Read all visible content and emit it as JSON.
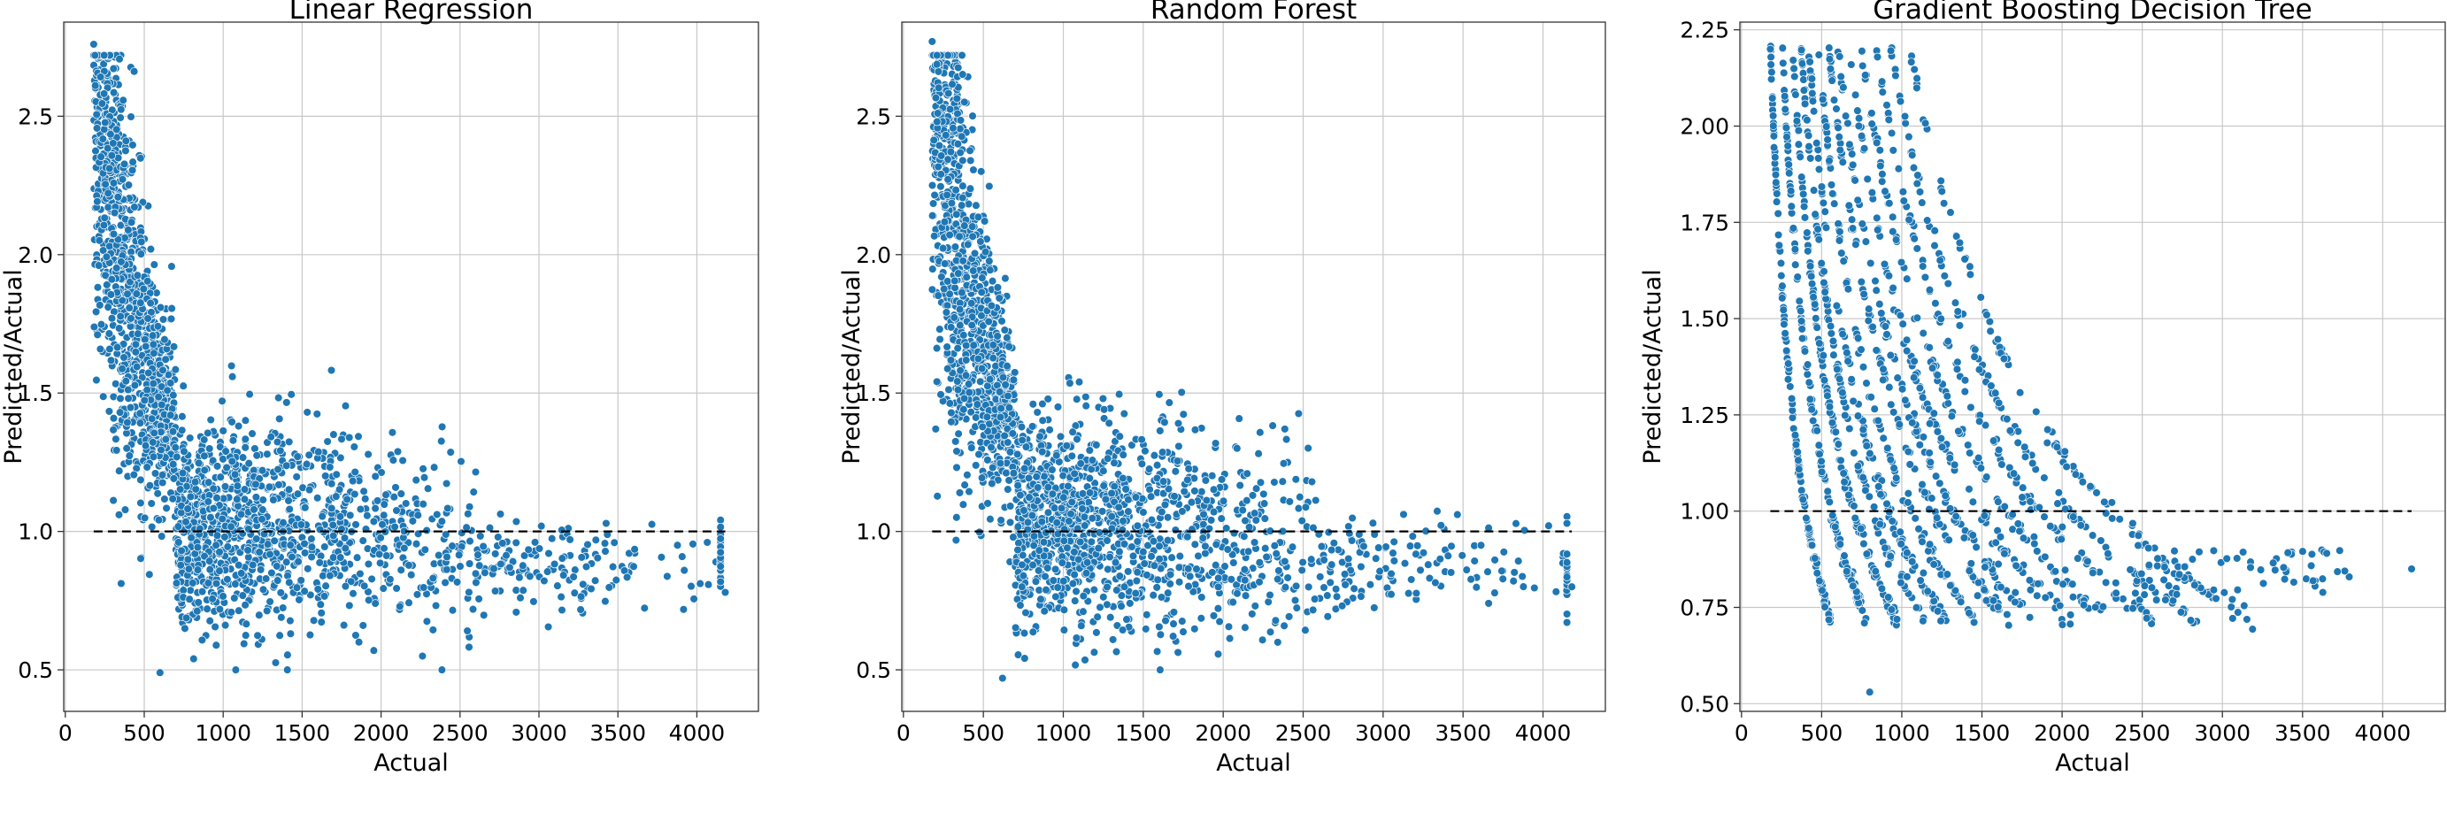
{
  "point_color": "#1f77b4",
  "chart_data": [
    {
      "type": "scatter",
      "model": "lr",
      "title": "Linear Regression",
      "xlabel": "Actual",
      "ylabel": "Predicted/Actual",
      "xlim": [
        -10,
        4390
      ],
      "ylim": [
        0.35,
        2.84
      ],
      "xticks": [
        0,
        500,
        1000,
        1500,
        2000,
        2500,
        3000,
        3500,
        4000
      ],
      "yticks": [
        0.5,
        1.0,
        1.5,
        2.0,
        2.5
      ],
      "ytick_labels": [
        "0.5",
        "1.0",
        "1.5",
        "2.0",
        "2.5"
      ],
      "reference_line": {
        "x": [
          180,
          4180
        ],
        "y": 1.0
      },
      "extreme_points": [
        [
          180,
          2.76
        ],
        [
          4180,
          0.78
        ],
        [
          600,
          0.49
        ]
      ]
    },
    {
      "type": "scatter",
      "model": "rf",
      "title": "Random Forest",
      "xlabel": "Actual",
      "ylabel": "Predicted/Actual",
      "xlim": [
        -10,
        4390
      ],
      "ylim": [
        0.35,
        2.84
      ],
      "xticks": [
        0,
        500,
        1000,
        1500,
        2000,
        2500,
        3000,
        3500,
        4000
      ],
      "yticks": [
        0.5,
        1.0,
        1.5,
        2.0,
        2.5
      ],
      "ytick_labels": [
        "0.5",
        "1.0",
        "1.5",
        "2.0",
        "2.5"
      ],
      "reference_line": {
        "x": [
          180,
          4180
        ],
        "y": 1.0
      },
      "extreme_points": [
        [
          180,
          2.77
        ],
        [
          4180,
          0.8
        ],
        [
          620,
          0.47
        ]
      ]
    },
    {
      "type": "scatter",
      "model": "gbdt",
      "title": "Gradient Boosting Decision Tree",
      "xlabel": "Actual",
      "ylabel": "Predicted/Actual",
      "xlim": [
        -10,
        4390
      ],
      "ylim": [
        0.48,
        2.27
      ],
      "xticks": [
        0,
        500,
        1000,
        1500,
        2000,
        2500,
        3000,
        3500,
        4000
      ],
      "yticks": [
        0.5,
        0.75,
        1.0,
        1.25,
        1.5,
        1.75,
        2.0,
        2.25
      ],
      "ytick_labels": [
        "0.50",
        "0.75",
        "1.00",
        "1.25",
        "1.50",
        "1.75",
        "2.00",
        "2.25"
      ],
      "reference_line": {
        "x": [
          180,
          4180
        ],
        "y": 1.0
      },
      "extreme_points": [
        [
          180,
          2.2
        ],
        [
          800,
          0.53
        ],
        [
          4180,
          0.85
        ]
      ]
    }
  ]
}
